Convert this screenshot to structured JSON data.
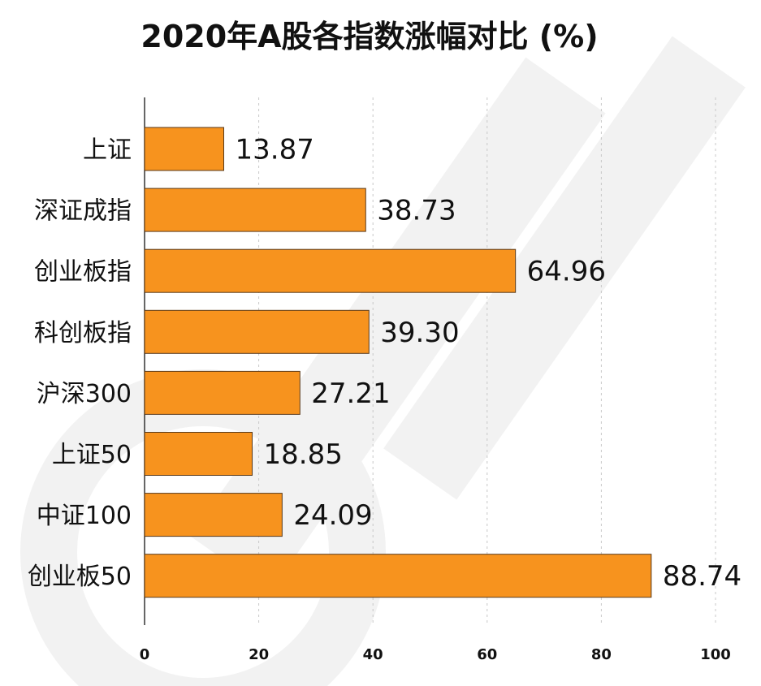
{
  "chart_data": {
    "type": "bar",
    "orientation": "horizontal",
    "title": "2020年A股各指数涨幅对比 (%)",
    "categories": [
      "上证",
      "深证成指",
      "创业板指",
      "科创板指",
      "沪深300",
      "上证50",
      "中证100",
      "创业板50"
    ],
    "values": [
      13.87,
      38.73,
      64.96,
      39.3,
      27.21,
      18.85,
      24.09,
      88.74
    ],
    "value_labels": [
      "13.87",
      "38.73",
      "64.96",
      "39.30",
      "27.21",
      "18.85",
      "24.09",
      "88.74"
    ],
    "xlim": [
      0,
      100
    ],
    "xticks": [
      0,
      20,
      40,
      60,
      80,
      100
    ],
    "xtick_labels": [
      "0",
      "20",
      "40",
      "60",
      "80",
      "100"
    ],
    "xlabel": "",
    "ylabel": "",
    "grid": "vertical dashed",
    "bar_color": "#F7931E",
    "bar_edge_color": "#5a3a1a",
    "grid_color": "#c8c8c8",
    "watermark_color": "#f2f2f2"
  }
}
